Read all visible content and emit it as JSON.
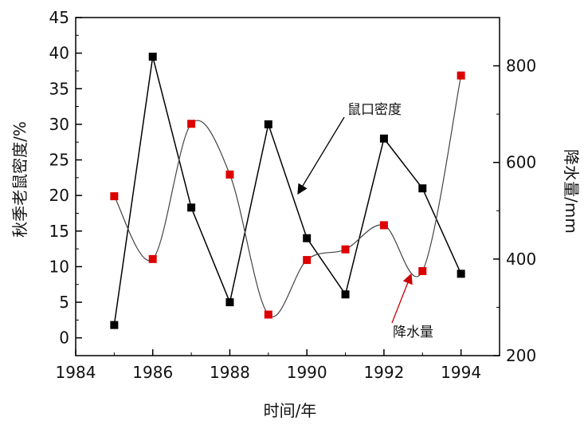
{
  "chart_data": {
    "type": "line",
    "xlabel": "时间/年",
    "ylabel_left": "秋季老鼠密度/%",
    "ylabel_right": "降水量/mm",
    "xlim": [
      1984,
      1995
    ],
    "ylim_left": [
      -2.5,
      45
    ],
    "ylim_right": [
      200,
      900
    ],
    "x_ticks": [
      1984,
      1986,
      1988,
      1990,
      1992,
      1994
    ],
    "y_left_ticks": [
      0,
      5,
      10,
      15,
      20,
      25,
      30,
      35,
      40,
      45
    ],
    "y_right_ticks": [
      200,
      400,
      600,
      800
    ],
    "grid": false,
    "series": [
      {
        "name": "鼠口密度",
        "axis": "left",
        "color": "#000000",
        "marker": "square",
        "line": "straight",
        "x": [
          1985,
          1986,
          1987,
          1988,
          1989,
          1990,
          1991,
          1992,
          1993,
          1994
        ],
        "values": [
          1.8,
          39.5,
          18.3,
          5.0,
          30.0,
          14.0,
          6.1,
          28.0,
          21.0,
          9.0
        ]
      },
      {
        "name": "降水量",
        "axis": "right",
        "color": "#dd0000",
        "marker": "square",
        "line": "smooth",
        "x": [
          1985,
          1986,
          1987,
          1988,
          1989,
          1990,
          1991,
          1992,
          1993,
          1994
        ],
        "values": [
          530,
          400,
          680,
          575,
          285,
          398,
          420,
          470,
          375,
          780
        ]
      }
    ],
    "annotations": [
      {
        "text": "鼠口密度",
        "series": 0
      },
      {
        "text": "降水量",
        "series": 1
      }
    ]
  }
}
